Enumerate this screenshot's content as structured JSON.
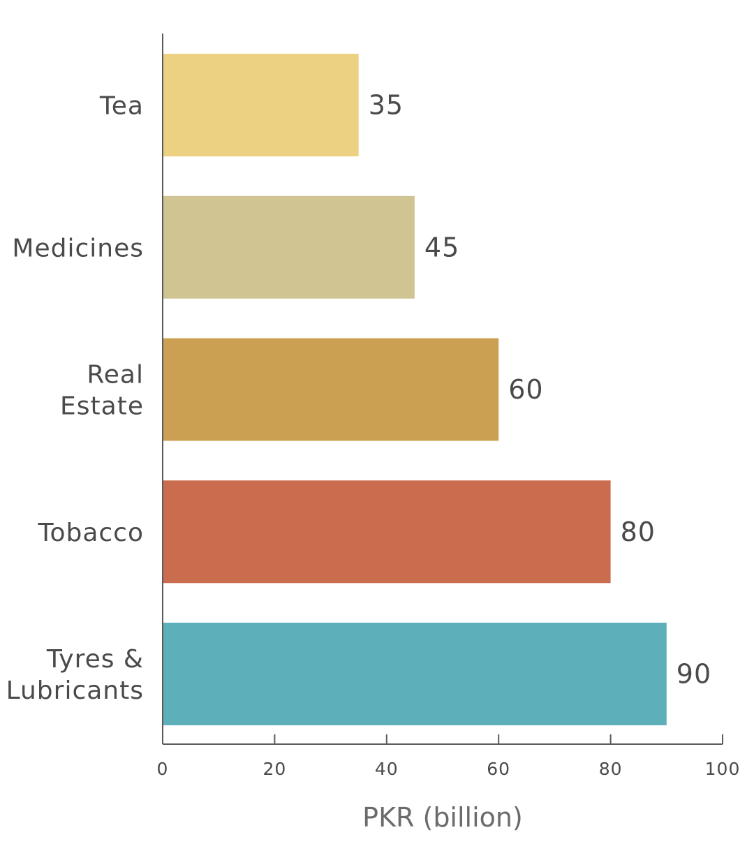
{
  "chart_data": {
    "type": "bar",
    "orientation": "horizontal",
    "categories": [
      [
        "Tea"
      ],
      [
        "Medicines"
      ],
      [
        "Real",
        "Estate"
      ],
      [
        "Tobacco"
      ],
      [
        "Tyres &",
        "Lubricants"
      ]
    ],
    "values": [
      35,
      45,
      60,
      80,
      90
    ],
    "data_labels": [
      "35",
      "45",
      "60",
      "80",
      "90"
    ],
    "colors": [
      "#ECD182",
      "#D0C493",
      "#CCA052",
      "#CA6D4F",
      "#5DB0B9"
    ],
    "xlabel": "PKR (billion)",
    "ylabel": "",
    "title": "",
    "xlim": [
      0,
      100
    ],
    "xticks": [
      0,
      20,
      40,
      60,
      80,
      100
    ],
    "xtick_labels": [
      "0",
      "20",
      "40",
      "60",
      "80",
      "100"
    ],
    "grid": false,
    "legend": "none"
  }
}
